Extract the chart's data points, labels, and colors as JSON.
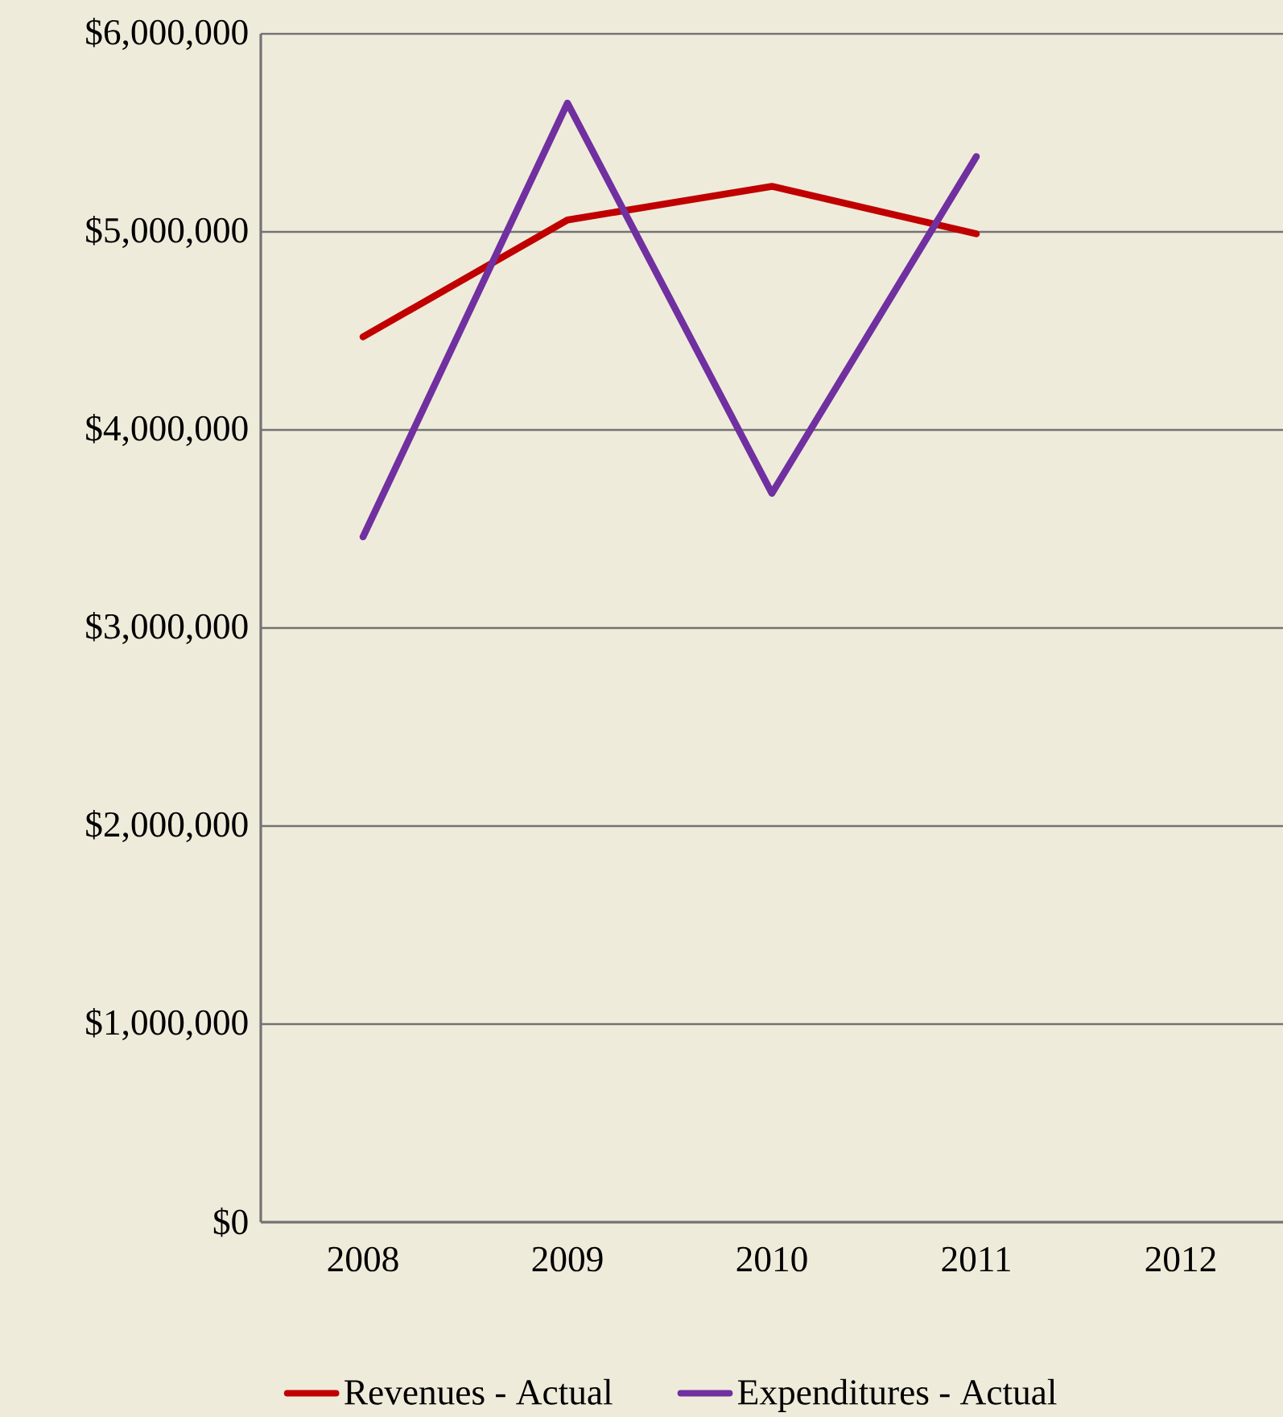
{
  "chart_data": {
    "type": "line",
    "categories": [
      "2008",
      "2009",
      "2010",
      "2011",
      "2012"
    ],
    "series": [
      {
        "name": "Revenues - Actual",
        "color": "#c00000",
        "values": [
          4470000,
          5060000,
          5230000,
          4990000,
          null
        ]
      },
      {
        "name": "Expenditures - Actual",
        "color": "#7030a0",
        "values": [
          3460000,
          5650000,
          3680000,
          5380000,
          null
        ]
      }
    ],
    "ylim": [
      0,
      6000000
    ],
    "yticks": [
      {
        "value": 0,
        "label": "$0"
      },
      {
        "value": 1000000,
        "label": "$1,000,000"
      },
      {
        "value": 2000000,
        "label": "$2,000,000"
      },
      {
        "value": 3000000,
        "label": "$3,000,000"
      },
      {
        "value": 4000000,
        "label": "$4,000,000"
      },
      {
        "value": 5000000,
        "label": "$5,000,000"
      },
      {
        "value": 6000000,
        "label": "$6,000,000"
      }
    ],
    "grid": "y",
    "legend": "bottom"
  }
}
